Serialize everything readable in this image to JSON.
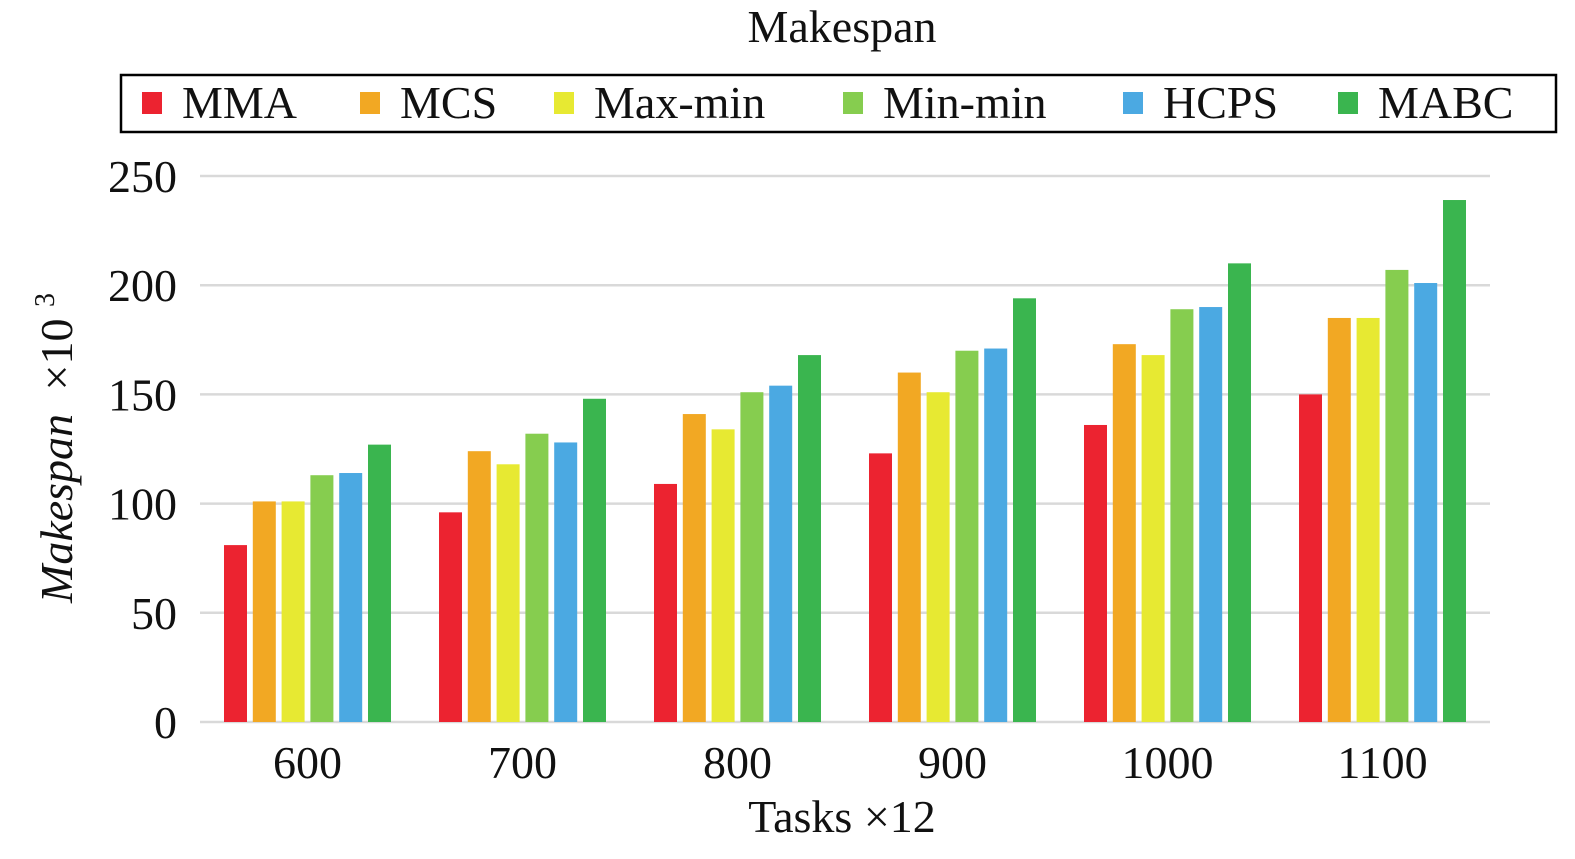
{
  "chart_data": {
    "type": "bar",
    "title": "Makespan",
    "xlabel": "Tasks ×12",
    "ylabel_main": "Makespan",
    "ylabel_suffix": "×10",
    "ylabel_exponent": "3",
    "categories": [
      "600",
      "700",
      "800",
      "900",
      "1000",
      "1100"
    ],
    "ylim": [
      0,
      250
    ],
    "yticks": [
      0,
      50,
      100,
      150,
      200,
      250
    ],
    "grid": true,
    "legend_position": "top",
    "series": [
      {
        "name": "MMA",
        "color": "#ec2330",
        "values": [
          81,
          96,
          109,
          123,
          136,
          150
        ]
      },
      {
        "name": "MCS",
        "color": "#f2a823",
        "values": [
          101,
          124,
          141,
          160,
          173,
          185
        ]
      },
      {
        "name": "Max-min",
        "color": "#e7e932",
        "values": [
          101,
          118,
          134,
          151,
          168,
          185
        ]
      },
      {
        "name": "Min-min",
        "color": "#86cd4f",
        "values": [
          113,
          132,
          151,
          170,
          189,
          207
        ]
      },
      {
        "name": "HCPS",
        "color": "#4ba9e2",
        "values": [
          114,
          128,
          154,
          171,
          190,
          201
        ]
      },
      {
        "name": "MABC",
        "color": "#3ab54f",
        "values": [
          127,
          148,
          168,
          194,
          210,
          239
        ]
      }
    ]
  }
}
